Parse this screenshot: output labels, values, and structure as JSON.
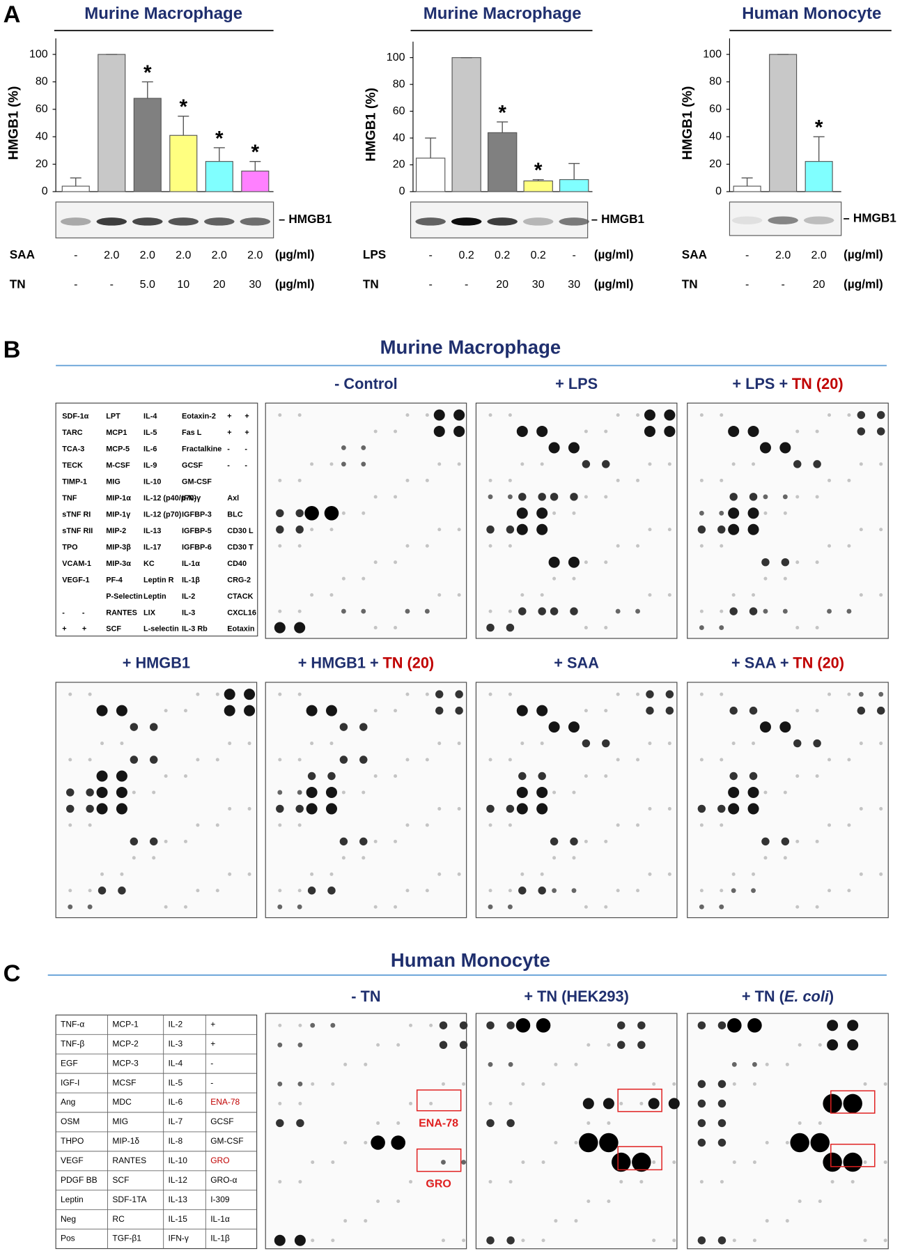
{
  "panel_labels": [
    "A",
    "B",
    "C"
  ],
  "chart_data": [
    {
      "type": "bar",
      "title": "Murine Macrophage",
      "y_label": "HMGB1 (%)",
      "ylim": [
        0,
        100
      ],
      "yticks": [
        0,
        20,
        40,
        60,
        80,
        100
      ],
      "values": [
        4,
        100,
        68,
        41,
        22,
        15
      ],
      "errors": [
        6,
        0,
        12,
        14,
        10,
        7
      ],
      "colors": [
        "#ffffff",
        "#c8c8c8",
        "#808080",
        "#ffff80",
        "#80ffff",
        "#ff80ff"
      ],
      "significant": [
        false,
        false,
        true,
        true,
        true,
        true
      ],
      "significance_mark": "*",
      "blot_label": "HMGB1",
      "conditions": [
        {
          "name": "SAA",
          "levels": [
            "-",
            "2.0",
            "2.0",
            "2.0",
            "2.0",
            "2.0"
          ],
          "unit": "(µg/ml)"
        },
        {
          "name": "TN",
          "levels": [
            "-",
            "-",
            "5.0",
            "10",
            "20",
            "30"
          ],
          "unit": "(µg/ml)"
        }
      ]
    },
    {
      "type": "bar",
      "title": "Murine Macrophage",
      "y_label": "HMGB1 (%)",
      "ylim": [
        0,
        100
      ],
      "yticks": [
        0,
        20,
        40,
        60,
        80,
        100
      ],
      "values": [
        25,
        100,
        44,
        8,
        9
      ],
      "errors": [
        15,
        0,
        8,
        1,
        12
      ],
      "colors": [
        "#ffffff",
        "#c8c8c8",
        "#808080",
        "#ffff80",
        "#80ffff"
      ],
      "significant": [
        false,
        false,
        true,
        true,
        false
      ],
      "significance_mark": "*",
      "blot_label": "HMGB1",
      "conditions": [
        {
          "name": "LPS",
          "levels": [
            "-",
            "0.2",
            "0.2",
            "0.2",
            "-"
          ],
          "unit": "(µg/ml)"
        },
        {
          "name": "TN",
          "levels": [
            "-",
            "-",
            "20",
            "30",
            "30"
          ],
          "unit": "(µg/ml)"
        }
      ]
    },
    {
      "type": "bar",
      "title": "Human Monocyte",
      "y_label": "HMGB1 (%)",
      "ylim": [
        0,
        100
      ],
      "yticks": [
        0,
        20,
        40,
        60,
        80,
        100
      ],
      "values": [
        4,
        100,
        22
      ],
      "errors": [
        6,
        0,
        18
      ],
      "colors": [
        "#ffffff",
        "#c8c8c8",
        "#80ffff"
      ],
      "significant": [
        false,
        false,
        true
      ],
      "significance_mark": "*",
      "blot_label": "HMGB1",
      "conditions": [
        {
          "name": "SAA",
          "levels": [
            "-",
            "2.0",
            "2.0"
          ],
          "unit": "(µg/ml)"
        },
        {
          "name": "TN",
          "levels": [
            "-",
            "-",
            "20"
          ],
          "unit": "(µg/ml)"
        }
      ]
    }
  ],
  "panel_b": {
    "title": "Murine Macrophage",
    "key_rows": [
      [
        "SDF-1α",
        null,
        "LPT",
        "IL-4",
        "Eotaxin-2",
        "+",
        "+"
      ],
      [
        "TARC",
        null,
        "MCP1",
        "IL-5",
        "Fas L",
        "+",
        "+"
      ],
      [
        "TCA-3",
        null,
        "MCP-5",
        "IL-6",
        "Fractalkine",
        "-",
        "-"
      ],
      [
        "TECK",
        null,
        "M-CSF",
        "IL-9",
        "GCSF",
        "-",
        "-"
      ],
      [
        "TIMP-1",
        null,
        "MIG",
        "IL-10",
        "GM-CSF",
        null,
        null
      ],
      [
        "TNF",
        null,
        "MIP-1α",
        "IL-12 (p40/p70)",
        "IFN-γ",
        "Axl",
        null
      ],
      [
        "sTNF RI",
        null,
        "MIP-1γ",
        "IL-12 (p70)",
        "IGFBP-3",
        "BLC",
        null
      ],
      [
        "sTNF RII",
        null,
        "MIP-2",
        "IL-13",
        "IGFBP-5",
        "CD30 L",
        null
      ],
      [
        "TPO",
        null,
        "MIP-3β",
        "IL-17",
        "IGFBP-6",
        "CD30 T",
        null
      ],
      [
        "VCAM-1",
        null,
        "MIP-3α",
        "KC",
        "IL-1α",
        "CD40",
        null
      ],
      [
        "VEGF-1",
        null,
        "PF-4",
        "Leptin R",
        "IL-1β",
        "CRG-2",
        null
      ],
      [
        null,
        null,
        "P-Selectin",
        "Leptin",
        "IL-2",
        "CTACK",
        null
      ],
      [
        "-",
        "-",
        "RANTES",
        "LIX",
        "IL-3",
        "CXCL16",
        null
      ],
      [
        "+",
        "+",
        "SCF",
        "L-selectin",
        "IL-3 Rb",
        "Eotaxin",
        null
      ]
    ],
    "arrays": [
      {
        "title_parts": [
          "- Control"
        ]
      },
      {
        "title_parts": [
          "+ LPS"
        ]
      },
      {
        "title_parts": [
          "+ LPS +",
          "TN (20)"
        ]
      },
      {
        "title_parts": [
          "+ HMGB1"
        ]
      },
      {
        "title_parts": [
          "+ HMGB1 +",
          "TN (20)"
        ]
      },
      {
        "title_parts": [
          "+ SAA"
        ]
      },
      {
        "title_parts": [
          "+ SAA +",
          "TN (20)"
        ]
      }
    ]
  },
  "panel_c": {
    "title": "Human Monocyte",
    "table_rows": [
      [
        "TNF-α",
        "MCP-1",
        "IL-2",
        "+"
      ],
      [
        "TNF-β",
        "MCP-2",
        "IL-3",
        "+"
      ],
      [
        "EGF",
        "MCP-3",
        "IL-4",
        "-"
      ],
      [
        "IGF-I",
        "MCSF",
        "IL-5",
        "-"
      ],
      [
        "Ang",
        "MDC",
        "IL-6",
        "ENA-78"
      ],
      [
        "OSM",
        "MIG",
        "IL-7",
        "GCSF"
      ],
      [
        "THPO",
        "MIP-1δ",
        "IL-8",
        "GM-CSF"
      ],
      [
        "VEGF",
        "RANTES",
        "IL-10",
        "GRO"
      ],
      [
        "PDGF BB",
        "SCF",
        "IL-12",
        "GRO-α"
      ],
      [
        "Leptin",
        "SDF-1TA",
        "IL-13",
        "I-309"
      ],
      [
        "Neg",
        "RC",
        "IL-15",
        "IL-1α"
      ],
      [
        "Pos",
        "TGF-β1",
        "IFN-γ",
        "IL-1β"
      ]
    ],
    "arrays": [
      {
        "title_parts": [
          "- TN"
        ]
      },
      {
        "title_parts": [
          "+ TN (HEK293)"
        ]
      },
      {
        "title_parts": [
          "+ TN (",
          "E. coli",
          ")"
        ]
      }
    ],
    "box_labels": [
      "ENA-78",
      "GRO"
    ]
  }
}
